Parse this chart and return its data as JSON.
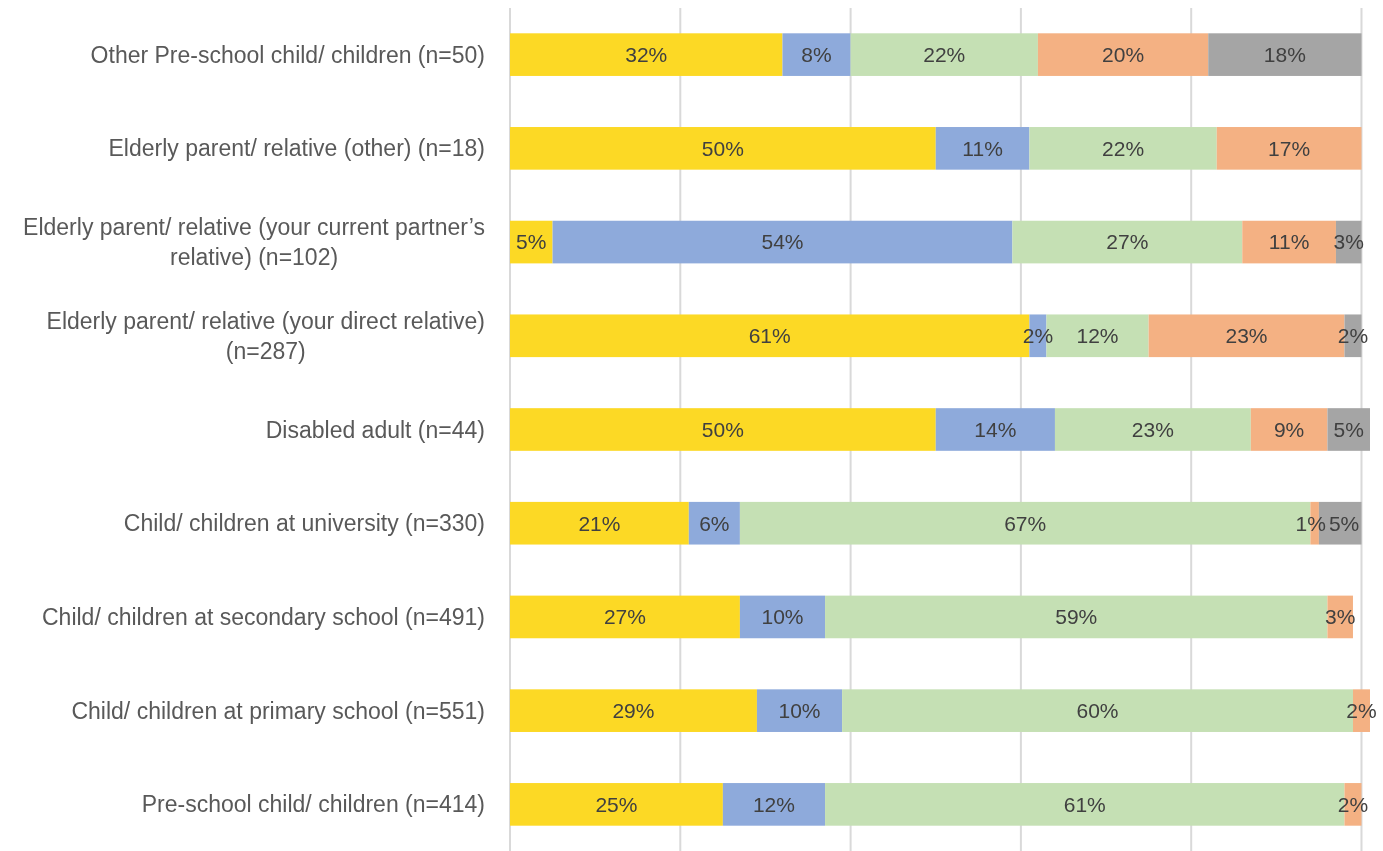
{
  "chart_data": {
    "type": "bar",
    "orientation": "horizontal",
    "stacked": true,
    "categories": [
      "Other Pre-school child/ children (n=50)",
      "Elderly parent/ relative (other) (n=18)",
      "Elderly parent/ relative (your current partner’s relative) (n=102)",
      "Elderly parent/ relative (your direct relative) (n=287)",
      "Disabled adult (n=44)",
      "Child/ children at university (n=330)",
      "Child/ children at secondary school (n=491)",
      "Child/ children at primary school (n=551)",
      "Pre-school child/ children (n=414)"
    ],
    "series": [
      {
        "color": "#fcd925",
        "values": [
          32,
          50,
          5,
          61,
          50,
          21,
          27,
          29,
          25
        ],
        "value_labels": [
          "32%",
          "50%",
          "5%",
          "61%",
          "50%",
          "21%",
          "27%",
          "29%",
          "25%"
        ]
      },
      {
        "color": "#8eaadb",
        "values": [
          8,
          11,
          54,
          2,
          14,
          6,
          10,
          10,
          12
        ],
        "value_labels": [
          "8%",
          "11%",
          "54%",
          "2%",
          "14%",
          "6%",
          "10%",
          "10%",
          "12%"
        ]
      },
      {
        "color": "#c5e0b4",
        "values": [
          22,
          22,
          27,
          12,
          23,
          67,
          59,
          60,
          61
        ],
        "value_labels": [
          "22%",
          "22%",
          "27%",
          "12%",
          "23%",
          "67%",
          "59%",
          "60%",
          "61%"
        ]
      },
      {
        "color": "#f4b183",
        "values": [
          20,
          17,
          11,
          23,
          9,
          1,
          3,
          2,
          2
        ],
        "value_labels": [
          "20%",
          "17%",
          "11%",
          "23%",
          "9%",
          "1%",
          "3%",
          "2%",
          "2%"
        ]
      },
      {
        "color": "#a5a5a5",
        "values": [
          18,
          null,
          3,
          2,
          5,
          5,
          null,
          null,
          null
        ],
        "value_labels": [
          "18%",
          null,
          "3%",
          "2%",
          "5%",
          "5%",
          null,
          null,
          null
        ]
      }
    ],
    "xlim": [
      0,
      101
    ],
    "xticks": [
      {
        "value": 0,
        "label": null
      },
      {
        "value": 20,
        "label": null
      },
      {
        "value": 40,
        "label": null
      },
      {
        "value": 60,
        "label": null
      },
      {
        "value": 80,
        "label": null
      },
      {
        "value": 100,
        "label": null
      }
    ],
    "grid": "x",
    "tick_labels": "y"
  }
}
